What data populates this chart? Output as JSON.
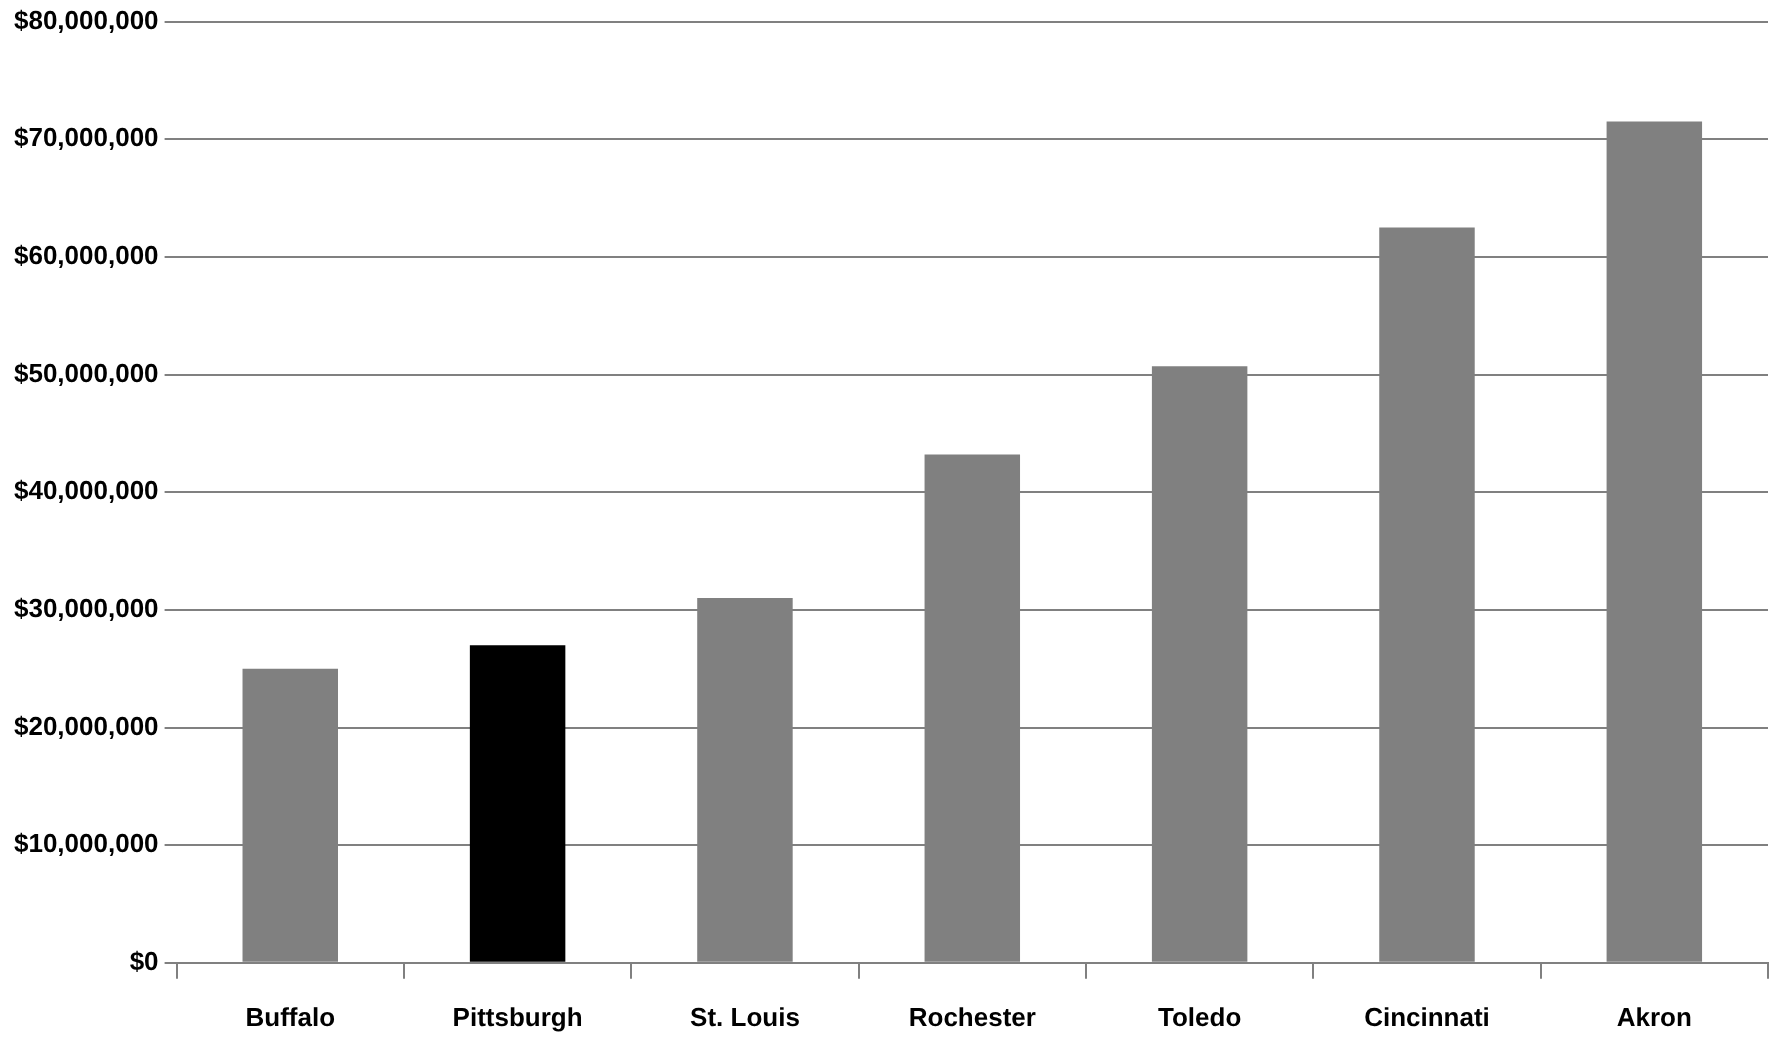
{
  "chart_data": {
    "type": "bar",
    "categories": [
      "Buffalo",
      "Pittsburgh",
      "St. Louis",
      "Rochester",
      "Toledo",
      "Cincinnati",
      "Akron"
    ],
    "values": [
      25000000,
      27000000,
      31000000,
      43200000,
      50700000,
      62500000,
      71500000
    ],
    "colors": [
      "#808080",
      "#000000",
      "#808080",
      "#808080",
      "#808080",
      "#808080",
      "#808080"
    ],
    "ylim": [
      0,
      80000000
    ],
    "yticks": [
      {
        "value": 0,
        "label": "$0"
      },
      {
        "value": 10000000,
        "label": "$10,000,000"
      },
      {
        "value": 20000000,
        "label": "$20,000,000"
      },
      {
        "value": 30000000,
        "label": "$30,000,000"
      },
      {
        "value": 40000000,
        "label": "$40,000,000"
      },
      {
        "value": 50000000,
        "label": "$50,000,000"
      },
      {
        "value": 60000000,
        "label": "$60,000,000"
      },
      {
        "value": 70000000,
        "label": "$70,000,000"
      },
      {
        "value": 80000000,
        "label": "$80,000,000"
      }
    ],
    "grid": "y",
    "legend": false
  }
}
